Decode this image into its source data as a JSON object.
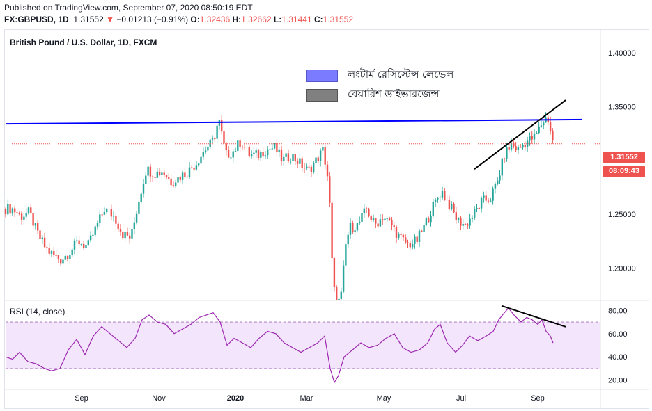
{
  "header": {
    "published": "Published on TradingView.com, September 07, 2020 08:50:19 EDT",
    "symbol": "FX:GBPUSD, 1D",
    "last": "1.31552",
    "arrow": "▼",
    "change": "−0.01213 (−0.91%)",
    "o_label": "O:",
    "o_value": "1.32436",
    "h_label": "H:",
    "h_value": "1.32662",
    "l_label": "L:",
    "l_value": "1.31441",
    "c_label": "C:",
    "c_value": "1.31552"
  },
  "chart_title": "British Pound / U.S. Dollar, 1D, FXCM",
  "legend": [
    {
      "label": "লংটার্ম রেসিস্টেন্স লেভেল",
      "color": "#7b7bff"
    },
    {
      "label": "বেয়ারিশ ডাইভারজেন্স",
      "color": "#808080"
    }
  ],
  "price_tags": {
    "price": "1.31552",
    "countdown": "08:09:43"
  },
  "rsi_title": "RSI (14, close)",
  "colors": {
    "up": "#26a69a",
    "down": "#ef5350",
    "resistance": "#0000ff",
    "rsi_line": "#9c27b0",
    "rsi_band": "#f3e5fc"
  },
  "chart_data": [
    {
      "type": "candlestick",
      "title": "British Pound / U.S. Dollar, 1D, FXCM",
      "ylim": [
        1.17,
        1.42
      ],
      "y_ticks": [
        "1.40000",
        "1.35000",
        "1.25000",
        "1.20000"
      ],
      "x_ticks": [
        "Sep",
        "Nov",
        "2020",
        "Mar",
        "May",
        "Jul",
        "Sep"
      ],
      "resistance_line": [
        1.334,
        1.338
      ],
      "close_path": [
        [
          0,
          1.255
        ],
        [
          10,
          1.255
        ],
        [
          22,
          1.248
        ],
        [
          34,
          1.252
        ],
        [
          46,
          1.232
        ],
        [
          58,
          1.218
        ],
        [
          68,
          1.212
        ],
        [
          80,
          1.208
        ],
        [
          92,
          1.215
        ],
        [
          104,
          1.225
        ],
        [
          118,
          1.22
        ],
        [
          130,
          1.238
        ],
        [
          142,
          1.255
        ],
        [
          156,
          1.248
        ],
        [
          168,
          1.232
        ],
        [
          180,
          1.228
        ],
        [
          192,
          1.265
        ],
        [
          202,
          1.292
        ],
        [
          214,
          1.288
        ],
        [
          226,
          1.29
        ],
        [
          238,
          1.28
        ],
        [
          250,
          1.285
        ],
        [
          262,
          1.29
        ],
        [
          274,
          1.298
        ],
        [
          286,
          1.31
        ],
        [
          298,
          1.318
        ],
        [
          306,
          1.338
        ],
        [
          316,
          1.305
        ],
        [
          326,
          1.308
        ],
        [
          338,
          1.318
        ],
        [
          350,
          1.305
        ],
        [
          362,
          1.305
        ],
        [
          374,
          1.31
        ],
        [
          386,
          1.312
        ],
        [
          398,
          1.3
        ],
        [
          410,
          1.305
        ],
        [
          422,
          1.298
        ],
        [
          434,
          1.29
        ],
        [
          446,
          1.3
        ],
        [
          456,
          1.31
        ],
        [
          464,
          1.278
        ],
        [
          470,
          1.185
        ],
        [
          476,
          1.165
        ],
        [
          482,
          1.175
        ],
        [
          488,
          1.22
        ],
        [
          494,
          1.238
        ],
        [
          506,
          1.24
        ],
        [
          518,
          1.255
        ],
        [
          530,
          1.24
        ],
        [
          542,
          1.248
        ],
        [
          554,
          1.24
        ],
        [
          566,
          1.228
        ],
        [
          578,
          1.222
        ],
        [
          590,
          1.225
        ],
        [
          602,
          1.24
        ],
        [
          614,
          1.258
        ],
        [
          626,
          1.272
        ],
        [
          636,
          1.26
        ],
        [
          648,
          1.245
        ],
        [
          660,
          1.24
        ],
        [
          672,
          1.25
        ],
        [
          684,
          1.262
        ],
        [
          696,
          1.265
        ],
        [
          706,
          1.28
        ],
        [
          716,
          1.305
        ],
        [
          726,
          1.315
        ],
        [
          736,
          1.31
        ],
        [
          748,
          1.318
        ],
        [
          760,
          1.322
        ],
        [
          770,
          1.335
        ],
        [
          778,
          1.341
        ],
        [
          786,
          1.316
        ]
      ],
      "trend_line": [
        [
          681,
          1.292
        ],
        [
          812,
          1.356
        ]
      ]
    },
    {
      "type": "line",
      "title": "RSI (14, close)",
      "ylim": [
        12,
        88
      ],
      "y_ticks": [
        "80.00",
        "60.00",
        "40.00",
        "20.00"
      ],
      "bands": [
        70,
        30
      ],
      "values": [
        [
          0,
          40
        ],
        [
          10,
          38
        ],
        [
          20,
          44
        ],
        [
          32,
          36
        ],
        [
          44,
          34
        ],
        [
          56,
          30
        ],
        [
          66,
          28
        ],
        [
          78,
          30
        ],
        [
          90,
          46
        ],
        [
          102,
          55
        ],
        [
          114,
          42
        ],
        [
          126,
          58
        ],
        [
          138,
          66
        ],
        [
          150,
          60
        ],
        [
          162,
          54
        ],
        [
          174,
          48
        ],
        [
          186,
          56
        ],
        [
          196,
          72
        ],
        [
          206,
          76
        ],
        [
          218,
          70
        ],
        [
          230,
          68
        ],
        [
          242,
          60
        ],
        [
          254,
          64
        ],
        [
          266,
          68
        ],
        [
          278,
          74
        ],
        [
          288,
          76
        ],
        [
          298,
          78
        ],
        [
          308,
          70
        ],
        [
          318,
          50
        ],
        [
          328,
          56
        ],
        [
          340,
          52
        ],
        [
          352,
          48
        ],
        [
          364,
          56
        ],
        [
          376,
          62
        ],
        [
          388,
          60
        ],
        [
          400,
          52
        ],
        [
          412,
          48
        ],
        [
          424,
          44
        ],
        [
          436,
          48
        ],
        [
          448,
          52
        ],
        [
          458,
          58
        ],
        [
          466,
          30
        ],
        [
          472,
          18
        ],
        [
          478,
          24
        ],
        [
          486,
          40
        ],
        [
          498,
          46
        ],
        [
          510,
          52
        ],
        [
          522,
          48
        ],
        [
          534,
          50
        ],
        [
          546,
          56
        ],
        [
          558,
          60
        ],
        [
          570,
          48
        ],
        [
          582,
          44
        ],
        [
          594,
          46
        ],
        [
          606,
          52
        ],
        [
          616,
          64
        ],
        [
          624,
          68
        ],
        [
          634,
          52
        ],
        [
          646,
          44
        ],
        [
          656,
          50
        ],
        [
          666,
          58
        ],
        [
          678,
          54
        ],
        [
          690,
          58
        ],
        [
          700,
          62
        ],
        [
          708,
          72
        ],
        [
          716,
          78
        ],
        [
          722,
          82
        ],
        [
          730,
          76
        ],
        [
          740,
          70
        ],
        [
          748,
          74
        ],
        [
          756,
          72
        ],
        [
          764,
          68
        ],
        [
          770,
          72
        ],
        [
          776,
          62
        ],
        [
          782,
          58
        ],
        [
          786,
          52
        ]
      ],
      "divergence_line": [
        [
          720,
          84
        ],
        [
          812,
          66
        ]
      ]
    }
  ]
}
